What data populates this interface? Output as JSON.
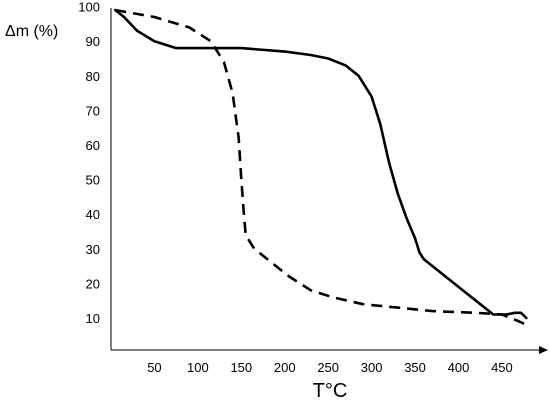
{
  "chart_data": {
    "type": "line",
    "title": "",
    "ylabel": "Δm (%)",
    "xlabel": "T°C",
    "xticks": [
      50,
      100,
      150,
      200,
      250,
      300,
      350,
      400,
      450
    ],
    "yticks": [
      10,
      20,
      30,
      40,
      50,
      60,
      70,
      80,
      90,
      100
    ],
    "xlim": [
      0,
      480
    ],
    "ylim": [
      5,
      100
    ],
    "grid": false,
    "legend": "none",
    "series": [
      {
        "style": "solid",
        "points": [
          [
            5,
            99
          ],
          [
            15,
            97
          ],
          [
            30,
            93
          ],
          [
            50,
            90
          ],
          [
            75,
            88
          ],
          [
            110,
            88
          ],
          [
            150,
            88
          ],
          [
            200,
            87
          ],
          [
            230,
            86
          ],
          [
            250,
            85
          ],
          [
            270,
            83
          ],
          [
            285,
            80
          ],
          [
            300,
            74
          ],
          [
            310,
            66
          ],
          [
            320,
            55
          ],
          [
            330,
            46
          ],
          [
            340,
            39
          ],
          [
            345,
            36
          ],
          [
            350,
            33
          ],
          [
            355,
            29
          ],
          [
            360,
            27
          ],
          [
            380,
            23
          ],
          [
            400,
            19
          ],
          [
            420,
            15
          ],
          [
            440,
            11
          ],
          [
            455,
            11
          ],
          [
            465,
            11.5
          ],
          [
            472,
            11.5
          ],
          [
            478,
            10
          ]
        ]
      },
      {
        "style": "dashed",
        "points": [
          [
            5,
            99
          ],
          [
            50,
            97
          ],
          [
            90,
            94
          ],
          [
            115,
            90
          ],
          [
            130,
            84
          ],
          [
            140,
            75
          ],
          [
            147,
            62
          ],
          [
            150,
            50
          ],
          [
            153,
            40
          ],
          [
            155,
            34
          ],
          [
            165,
            30
          ],
          [
            185,
            26
          ],
          [
            205,
            22
          ],
          [
            230,
            18
          ],
          [
            255,
            16
          ],
          [
            290,
            14
          ],
          [
            330,
            13
          ],
          [
            370,
            12
          ],
          [
            420,
            11.5
          ],
          [
            450,
            11
          ],
          [
            470,
            9
          ],
          [
            478,
            8
          ]
        ]
      }
    ]
  }
}
